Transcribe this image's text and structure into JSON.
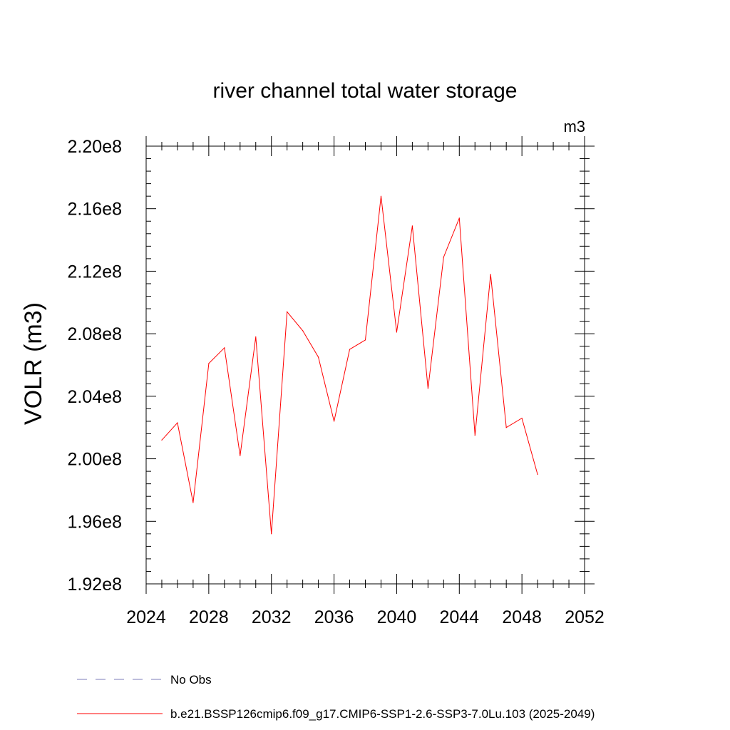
{
  "chart_data": {
    "type": "line",
    "title": "river channel total water storage",
    "units": "m3",
    "ylabel": "VOLR  (m3)",
    "xlabel": "",
    "xlim": [
      2024,
      2052
    ],
    "ylim": [
      192000000.0,
      220000000.0
    ],
    "x_ticks": [
      2024,
      2028,
      2032,
      2036,
      2040,
      2044,
      2048,
      2052
    ],
    "x_tick_labels": [
      "2024",
      "2028",
      "2032",
      "2036",
      "2040",
      "2044",
      "2048",
      "2052"
    ],
    "y_ticks": [
      192000000.0,
      196000000.0,
      200000000.0,
      204000000.0,
      208000000.0,
      212000000.0,
      216000000.0,
      220000000.0
    ],
    "y_tick_labels": [
      "1.92e8",
      "1.96e8",
      "2.00e8",
      "2.04e8",
      "2.08e8",
      "2.12e8",
      "2.16e8",
      "2.20e8"
    ],
    "grid": false,
    "legend_position": "bottom",
    "legend": [
      {
        "label": "No Obs",
        "color": "#7b7bb8",
        "style": "dashed"
      },
      {
        "label": "b.e21.BSSP126cmip6.f09_g17.CMIP6-SSP1-2.6-SSP3-7.0Lu.103 (2025-2049)",
        "color": "#ff0000",
        "style": "solid"
      }
    ],
    "series": [
      {
        "color": "#ff0000",
        "x": [
          2025,
          2026,
          2027,
          2028,
          2029,
          2030,
          2031,
          2032,
          2033,
          2034,
          2035,
          2036,
          2037,
          2038,
          2039,
          2040,
          2041,
          2042,
          2043,
          2044,
          2045,
          2046,
          2047,
          2048,
          2049
        ],
        "values": [
          201200000.0,
          202300000.0,
          197200000.0,
          206100000.0,
          207100000.0,
          200200000.0,
          207800000.0,
          195200000.0,
          209400000.0,
          208200000.0,
          206500000.0,
          202400000.0,
          207000000.0,
          207600000.0,
          216800000.0,
          208100000.0,
          214900000.0,
          204500000.0,
          212900000.0,
          215400000.0,
          201500000.0,
          211800000.0,
          202000000.0,
          202600000.0,
          199000000.0
        ]
      }
    ]
  }
}
